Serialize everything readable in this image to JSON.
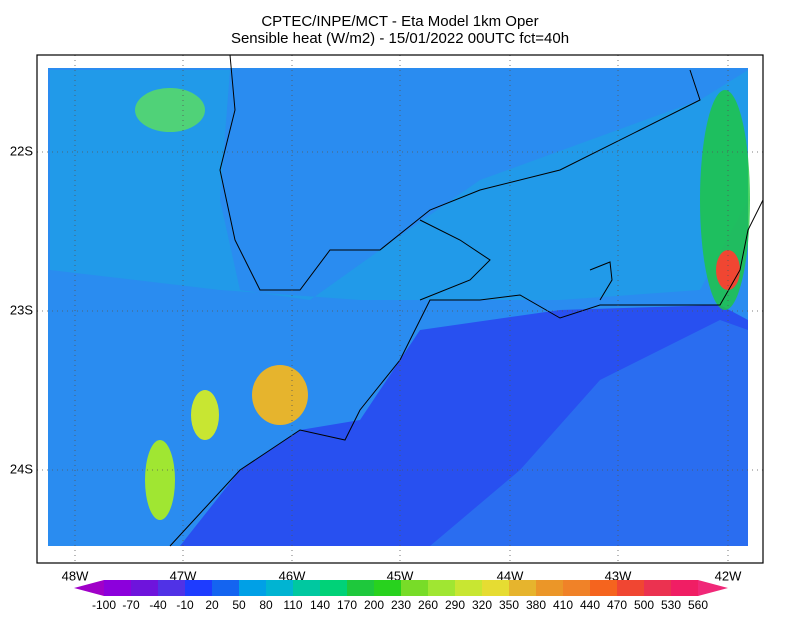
{
  "header": {
    "title": "CPTEC/INPE/MCT -  Eta Model 1km Oper",
    "subtitle": "Sensible heat (W/m2) - 15/01/2022 00UTC fct=40h"
  },
  "map": {
    "lat_labels": [
      "22S",
      "23S",
      "24S"
    ],
    "lon_labels": [
      "48W",
      "47W",
      "46W",
      "45W",
      "44W",
      "43W",
      "42W"
    ]
  },
  "colorbar": {
    "levels": [
      -100,
      -70,
      -40,
      -10,
      20,
      50,
      80,
      110,
      140,
      170,
      200,
      230,
      260,
      290,
      320,
      350,
      380,
      410,
      440,
      470,
      500,
      530,
      560
    ],
    "colors": [
      "#a000c8",
      "#8c00dc",
      "#6e14dc",
      "#5032e6",
      "#1e3cff",
      "#1464f0",
      "#00a0e6",
      "#00b4d2",
      "#00c8a0",
      "#00d278",
      "#1ec83c",
      "#28d21e",
      "#78dc28",
      "#a0e632",
      "#c8e632",
      "#e6dc32",
      "#e6b42d",
      "#eb9628",
      "#f08228",
      "#f5641e",
      "#f04632",
      "#eb3250",
      "#f01e64",
      "#f02878"
    ]
  }
}
